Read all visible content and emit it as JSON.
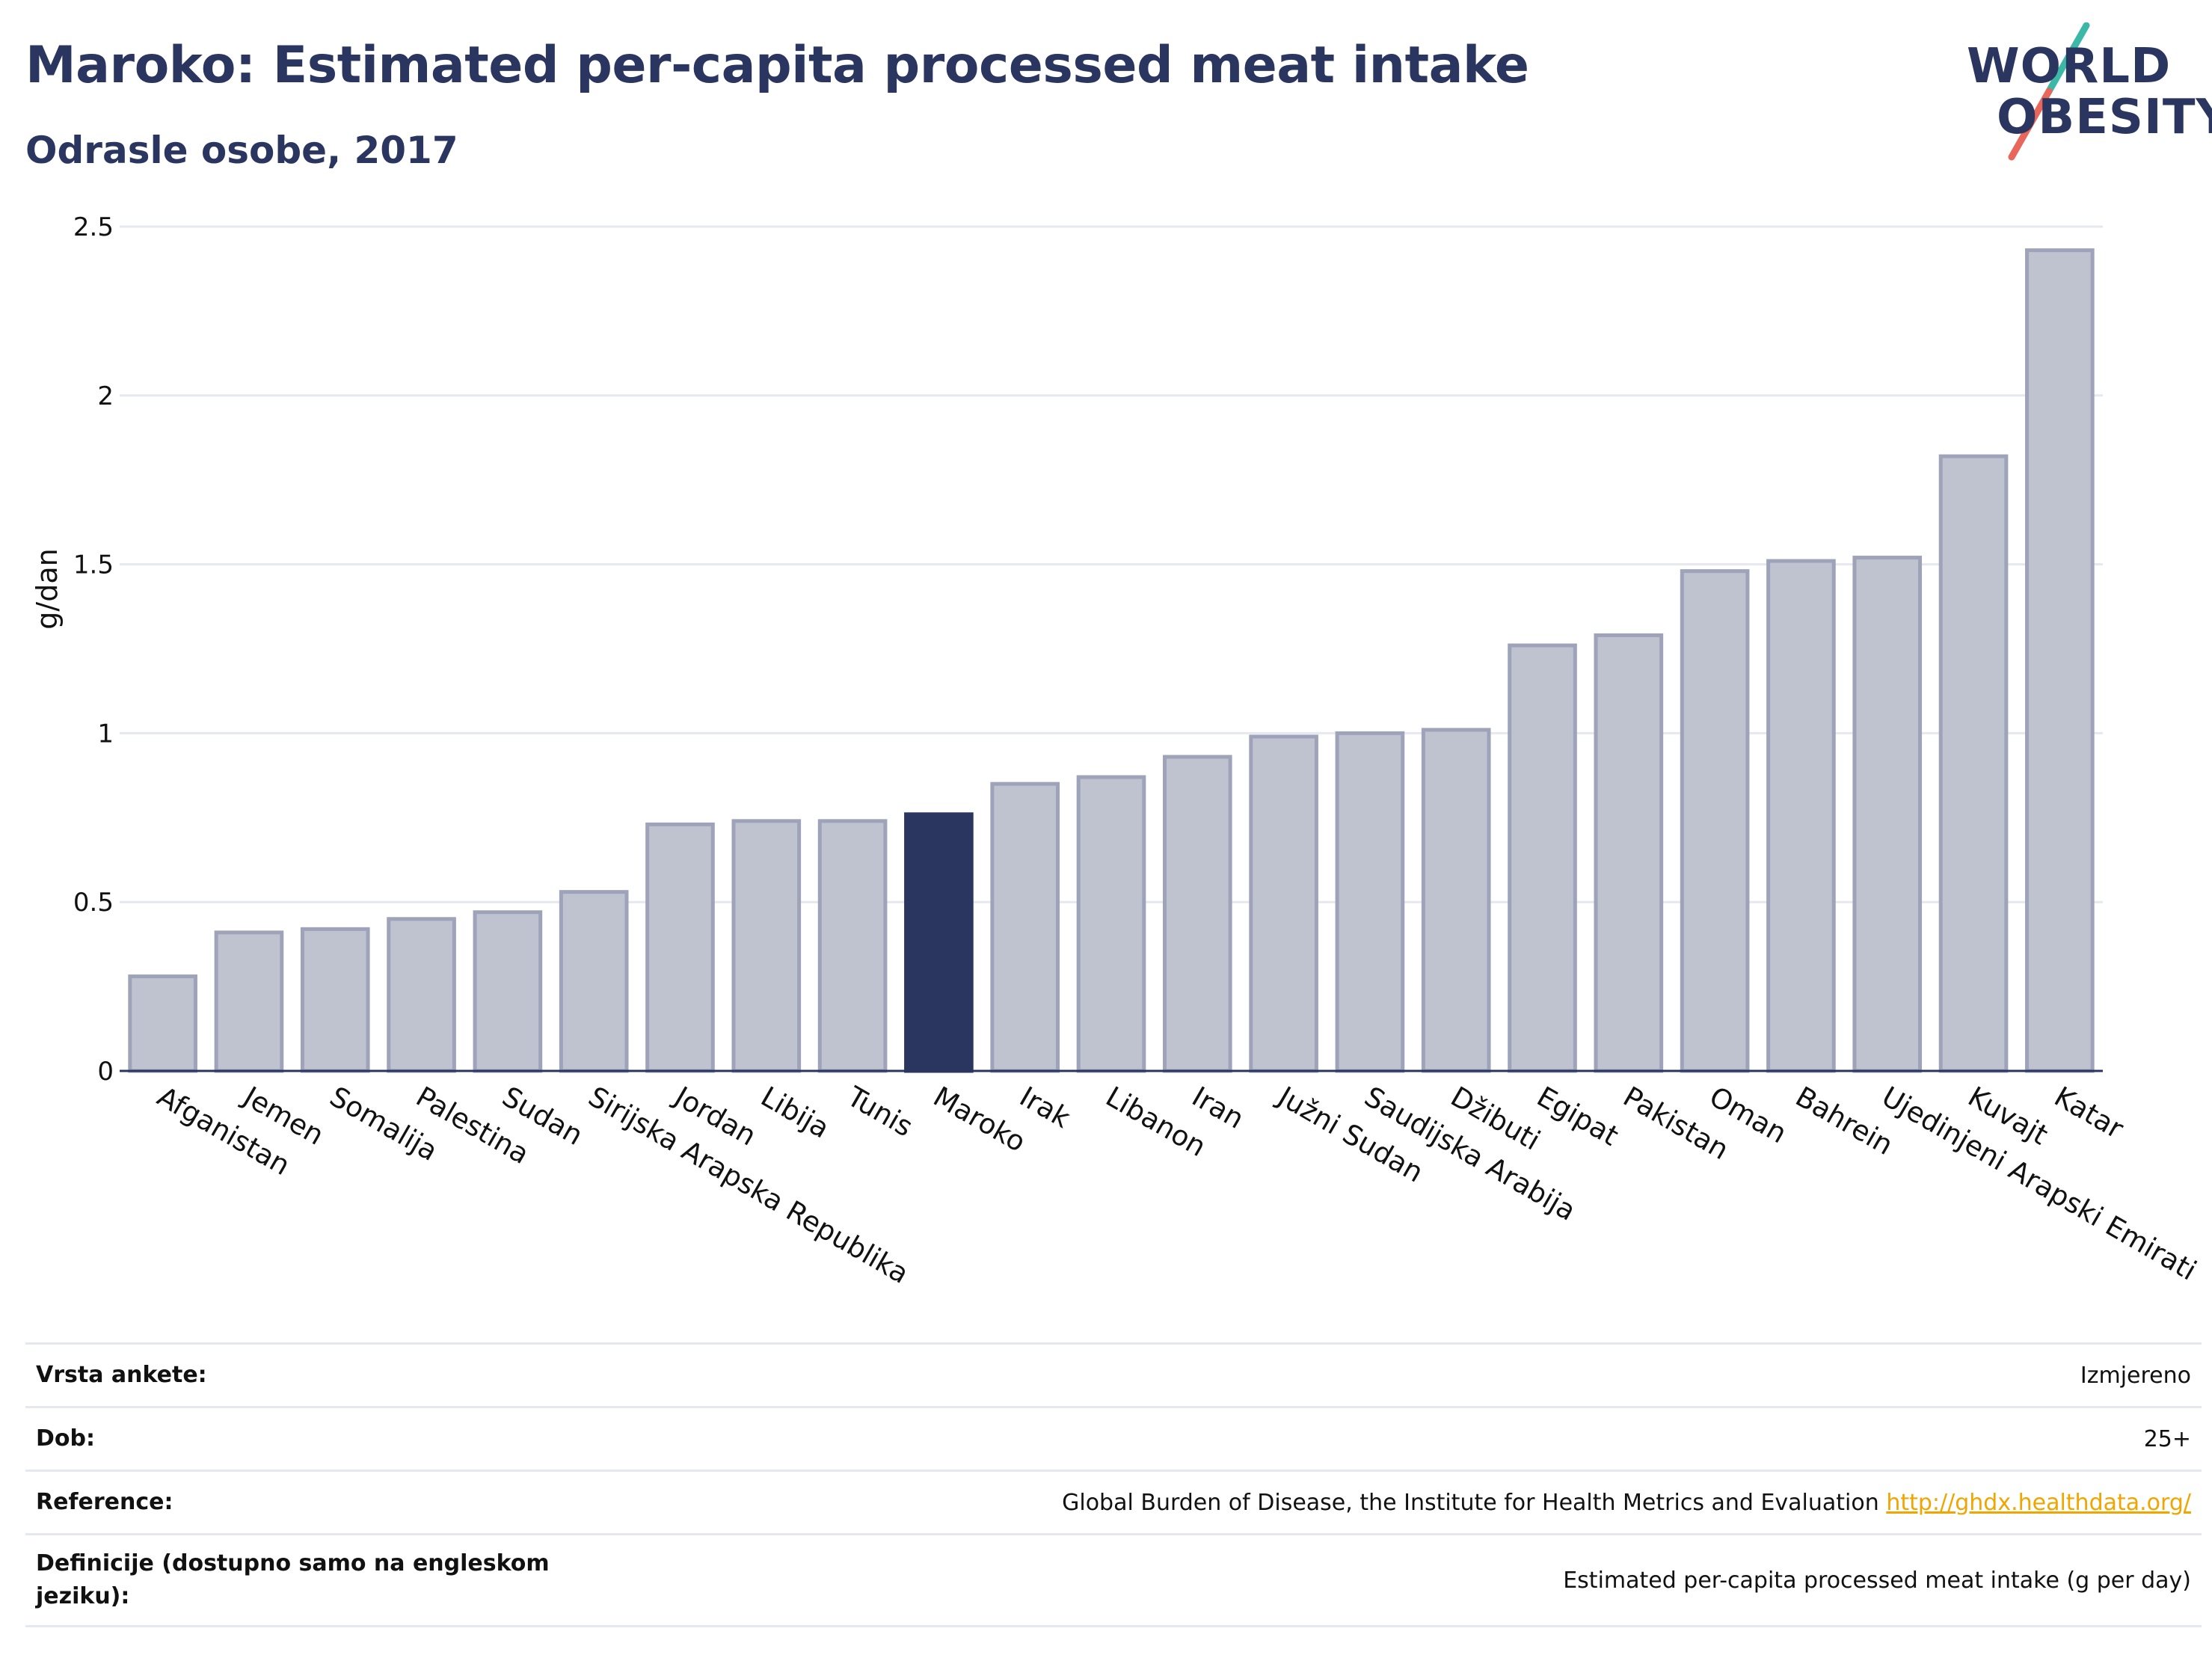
{
  "header": {
    "title": "Maroko: Estimated per-capita processed meat intake",
    "subtitle": "Odrasle osobe, 2017"
  },
  "logo": {
    "line1": "WORLD",
    "line2": "OBESITY"
  },
  "colors": {
    "bar": "#bfc2cf",
    "bar_border": "#9ea3b9",
    "highlight": "#2a3560",
    "grid": "#e6e8ef",
    "link": "#f0a500"
  },
  "chart_data": {
    "type": "bar",
    "title": "Maroko: Estimated per-capita processed meat intake",
    "subtitle": "Odrasle osobe, 2017",
    "xlabel": "",
    "ylabel": "g/dan",
    "ylim": [
      0,
      2.5
    ],
    "yticks": [
      0,
      0.5,
      1,
      1.5,
      2,
      2.5
    ],
    "yticklabels": [
      "0",
      "0.5",
      "1",
      "1.5",
      "2",
      "2.5"
    ],
    "grid": true,
    "highlight": "Maroko",
    "categories": [
      "Afganistan",
      "Jemen",
      "Somalija",
      "Palestina",
      "Sudan",
      "Sirijska Arapska Republika",
      "Jordan",
      "Libija",
      "Tunis",
      "Maroko",
      "Irak",
      "Libanon",
      "Iran",
      "Južni Sudan",
      "Saudijska Arabija",
      "Džibuti",
      "Egipat",
      "Pakistan",
      "Oman",
      "Bahrein",
      "Ujedinjeni Arapski Emirati",
      "Kuvajt",
      "Katar"
    ],
    "values": [
      0.28,
      0.41,
      0.42,
      0.45,
      0.47,
      0.53,
      0.73,
      0.74,
      0.74,
      0.76,
      0.85,
      0.87,
      0.93,
      0.99,
      1.0,
      1.01,
      1.26,
      1.29,
      1.48,
      1.51,
      1.52,
      1.82,
      2.43
    ]
  },
  "info": {
    "rows": [
      {
        "label": "Vrsta ankete:",
        "value": "Izmjereno"
      },
      {
        "label": "Dob:",
        "value": "25+"
      },
      {
        "label": "Reference:",
        "value": "Global Burden of Disease, the Institute for Health Metrics and Evaluation",
        "link": "http://ghdx.healthdata.org/"
      },
      {
        "label": "Definicije (dostupno samo na engleskom jeziku):",
        "value": "Estimated per-capita processed meat intake (g per day)"
      }
    ]
  }
}
